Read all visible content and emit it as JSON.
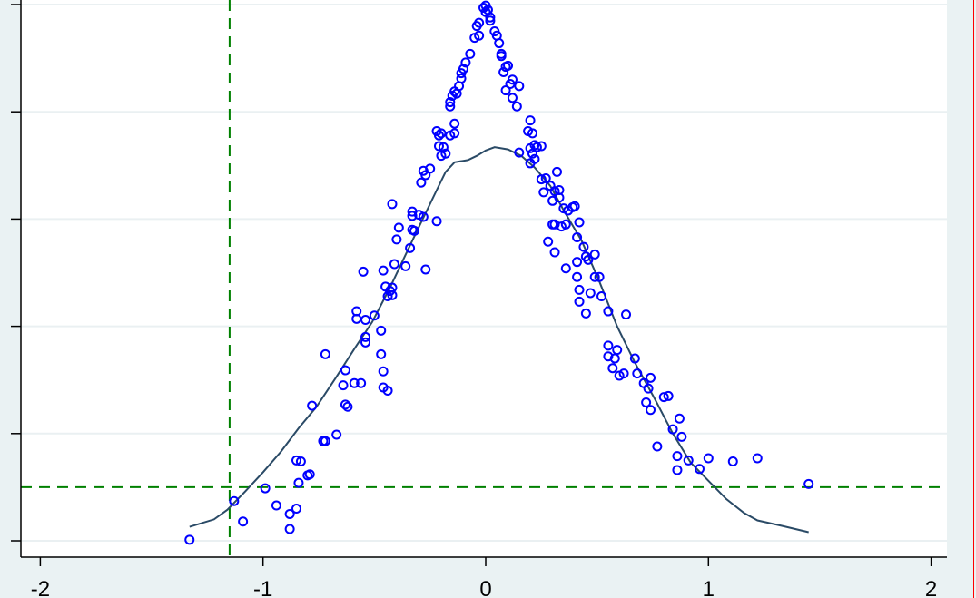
{
  "chart_data": {
    "type": "scatter",
    "title": "",
    "xlabel": "",
    "ylabel": "",
    "xlim": [
      -2.01,
      2.07
    ],
    "ylim": [
      -0.15,
      5.05
    ],
    "x_ticks": [
      -2,
      -1,
      0,
      1,
      2
    ],
    "x_tick_labels": [
      "-2",
      "-1",
      "0",
      "1",
      "2"
    ],
    "y_ticks": [
      0,
      1,
      2,
      3,
      4,
      5
    ],
    "y_tick_labels_visible": false,
    "grid": "horizontal",
    "colors": {
      "points": "#0000ff",
      "curve": "#2a4a66",
      "reference_lines": "#008000",
      "plot_bg": "#ffffff",
      "outer_bg": "#eaf2f3"
    },
    "reference_lines": {
      "horizontal_y": 0.5,
      "vertical_x": -1.15,
      "style": "dashed"
    },
    "points": [
      [
        -1.33,
        0.01
      ],
      [
        -1.13,
        0.37
      ],
      [
        -1.09,
        0.18
      ],
      [
        -0.99,
        0.49
      ],
      [
        -0.94,
        0.33
      ],
      [
        -0.88,
        0.25
      ],
      [
        -0.88,
        0.11
      ],
      [
        -0.85,
        0.3
      ],
      [
        -0.84,
        0.54
      ],
      [
        -0.83,
        0.74
      ],
      [
        -0.85,
        0.75
      ],
      [
        -0.8,
        0.61
      ],
      [
        -0.79,
        0.62
      ],
      [
        -0.78,
        1.26
      ],
      [
        -0.73,
        0.93
      ],
      [
        -0.72,
        0.93
      ],
      [
        -0.67,
        0.99
      ],
      [
        -0.72,
        1.74
      ],
      [
        -0.63,
        1.59
      ],
      [
        -0.64,
        1.45
      ],
      [
        -0.62,
        1.25
      ],
      [
        -0.63,
        1.27
      ],
      [
        -0.59,
        1.47
      ],
      [
        -0.56,
        1.47
      ],
      [
        -0.58,
        2.07
      ],
      [
        -0.58,
        2.14
      ],
      [
        -0.55,
        2.51
      ],
      [
        -0.54,
        1.9
      ],
      [
        -0.54,
        1.85
      ],
      [
        -0.54,
        2.06
      ],
      [
        -0.5,
        2.1
      ],
      [
        -0.47,
        1.74
      ],
      [
        -0.47,
        1.96
      ],
      [
        -0.46,
        1.58
      ],
      [
        -0.46,
        1.43
      ],
      [
        -0.44,
        1.4
      ],
      [
        -0.46,
        2.52
      ],
      [
        -0.45,
        2.37
      ],
      [
        -0.44,
        2.28
      ],
      [
        -0.43,
        2.33
      ],
      [
        -0.42,
        2.36
      ],
      [
        -0.42,
        2.29
      ],
      [
        -0.41,
        2.58
      ],
      [
        -0.42,
        3.14
      ],
      [
        -0.4,
        2.81
      ],
      [
        -0.39,
        2.92
      ],
      [
        -0.36,
        2.56
      ],
      [
        -0.34,
        2.73
      ],
      [
        -0.33,
        2.9
      ],
      [
        -0.32,
        2.89
      ],
      [
        -0.33,
        3.03
      ],
      [
        -0.33,
        3.07
      ],
      [
        -0.3,
        3.04
      ],
      [
        -0.28,
        3.02
      ],
      [
        -0.27,
        2.53
      ],
      [
        -0.22,
        2.98
      ],
      [
        -0.29,
        3.34
      ],
      [
        -0.28,
        3.45
      ],
      [
        -0.25,
        3.47
      ],
      [
        -0.27,
        3.41
      ],
      [
        -0.22,
        3.82
      ],
      [
        -0.21,
        3.78
      ],
      [
        -0.2,
        3.8
      ],
      [
        -0.19,
        3.67
      ],
      [
        -0.21,
        3.68
      ],
      [
        -0.2,
        3.59
      ],
      [
        -0.18,
        3.61
      ],
      [
        -0.16,
        3.78
      ],
      [
        -0.14,
        3.89
      ],
      [
        -0.14,
        3.8
      ],
      [
        -0.16,
        4.05
      ],
      [
        -0.16,
        4.09
      ],
      [
        -0.15,
        4.15
      ],
      [
        -0.14,
        4.19
      ],
      [
        -0.13,
        4.17
      ],
      [
        -0.12,
        4.24
      ],
      [
        -0.11,
        4.31
      ],
      [
        -0.11,
        4.36
      ],
      [
        -0.1,
        4.4
      ],
      [
        -0.09,
        4.46
      ],
      [
        -0.07,
        4.54
      ],
      [
        -0.05,
        4.69
      ],
      [
        -0.03,
        4.71
      ],
      [
        -0.04,
        4.8
      ],
      [
        -0.03,
        4.83
      ],
      [
        -0.01,
        4.97
      ],
      [
        0.0,
        4.99
      ],
      [
        0.0,
        4.93
      ],
      [
        0.01,
        4.95
      ],
      [
        0.02,
        4.88
      ],
      [
        0.02,
        4.85
      ],
      [
        0.04,
        4.75
      ],
      [
        0.05,
        4.71
      ],
      [
        0.06,
        4.64
      ],
      [
        0.07,
        4.54
      ],
      [
        0.07,
        4.52
      ],
      [
        0.09,
        4.42
      ],
      [
        0.1,
        4.43
      ],
      [
        0.08,
        4.37
      ],
      [
        0.09,
        4.2
      ],
      [
        0.11,
        4.26
      ],
      [
        0.12,
        4.3
      ],
      [
        0.15,
        4.24
      ],
      [
        0.12,
        4.13
      ],
      [
        0.14,
        4.05
      ],
      [
        0.2,
        3.92
      ],
      [
        0.19,
        3.82
      ],
      [
        0.21,
        3.8
      ],
      [
        0.22,
        3.69
      ],
      [
        0.2,
        3.66
      ],
      [
        0.23,
        3.67
      ],
      [
        0.25,
        3.68
      ],
      [
        0.15,
        3.62
      ],
      [
        0.2,
        3.52
      ],
      [
        0.22,
        3.56
      ],
      [
        0.21,
        3.61
      ],
      [
        0.32,
        3.44
      ],
      [
        0.25,
        3.37
      ],
      [
        0.27,
        3.38
      ],
      [
        0.29,
        3.31
      ],
      [
        0.26,
        3.25
      ],
      [
        0.31,
        3.26
      ],
      [
        0.3,
        3.17
      ],
      [
        0.33,
        3.2
      ],
      [
        0.33,
        3.27
      ],
      [
        0.35,
        3.1
      ],
      [
        0.37,
        3.08
      ],
      [
        0.39,
        3.11
      ],
      [
        0.4,
        3.12
      ],
      [
        0.28,
        2.79
      ],
      [
        0.3,
        2.95
      ],
      [
        0.31,
        2.95
      ],
      [
        0.34,
        2.93
      ],
      [
        0.36,
        2.95
      ],
      [
        0.42,
        2.97
      ],
      [
        0.31,
        2.69
      ],
      [
        0.36,
        2.54
      ],
      [
        0.41,
        2.83
      ],
      [
        0.44,
        2.74
      ],
      [
        0.45,
        2.65
      ],
      [
        0.46,
        2.62
      ],
      [
        0.41,
        2.6
      ],
      [
        0.49,
        2.67
      ],
      [
        0.49,
        2.46
      ],
      [
        0.51,
        2.46
      ],
      [
        0.41,
        2.46
      ],
      [
        0.42,
        2.34
      ],
      [
        0.47,
        2.31
      ],
      [
        0.52,
        2.28
      ],
      [
        0.42,
        2.23
      ],
      [
        0.45,
        2.12
      ],
      [
        0.55,
        2.14
      ],
      [
        0.55,
        1.82
      ],
      [
        0.59,
        1.78
      ],
      [
        0.55,
        1.72
      ],
      [
        0.58,
        1.7
      ],
      [
        0.63,
        2.11
      ],
      [
        0.67,
        1.7
      ],
      [
        0.57,
        1.61
      ],
      [
        0.6,
        1.54
      ],
      [
        0.62,
        1.56
      ],
      [
        0.68,
        1.56
      ],
      [
        0.71,
        1.47
      ],
      [
        0.74,
        1.52
      ],
      [
        0.73,
        1.42
      ],
      [
        0.72,
        1.29
      ],
      [
        0.74,
        1.22
      ],
      [
        0.8,
        1.34
      ],
      [
        0.82,
        1.35
      ],
      [
        0.87,
        1.14
      ],
      [
        0.84,
        1.04
      ],
      [
        0.88,
        0.97
      ],
      [
        0.77,
        0.88
      ],
      [
        0.86,
        0.79
      ],
      [
        0.91,
        0.75
      ],
      [
        0.86,
        0.66
      ],
      [
        0.96,
        0.67
      ],
      [
        1.0,
        0.77
      ],
      [
        1.11,
        0.74
      ],
      [
        1.22,
        0.77
      ],
      [
        1.45,
        0.53
      ]
    ],
    "curve": [
      [
        -1.33,
        0.13
      ],
      [
        -1.22,
        0.2
      ],
      [
        -1.16,
        0.29
      ],
      [
        -1.08,
        0.46
      ],
      [
        -1.0,
        0.64
      ],
      [
        -0.92,
        0.83
      ],
      [
        -0.84,
        1.05
      ],
      [
        -0.76,
        1.25
      ],
      [
        -0.67,
        1.53
      ],
      [
        -0.59,
        1.79
      ],
      [
        -0.51,
        2.04
      ],
      [
        -0.43,
        2.36
      ],
      [
        -0.35,
        2.71
      ],
      [
        -0.29,
        2.97
      ],
      [
        -0.22,
        3.27
      ],
      [
        -0.18,
        3.44
      ],
      [
        -0.14,
        3.53
      ],
      [
        -0.08,
        3.55
      ],
      [
        -0.04,
        3.59
      ],
      [
        0.0,
        3.64
      ],
      [
        0.04,
        3.67
      ],
      [
        0.1,
        3.65
      ],
      [
        0.16,
        3.59
      ],
      [
        0.22,
        3.48
      ],
      [
        0.29,
        3.31
      ],
      [
        0.35,
        3.08
      ],
      [
        0.43,
        2.8
      ],
      [
        0.51,
        2.42
      ],
      [
        0.59,
        2.0
      ],
      [
        0.67,
        1.66
      ],
      [
        0.76,
        1.32
      ],
      [
        0.84,
        1.0
      ],
      [
        0.92,
        0.73
      ],
      [
        1.0,
        0.56
      ],
      [
        1.08,
        0.39
      ],
      [
        1.16,
        0.26
      ],
      [
        1.22,
        0.19
      ],
      [
        1.33,
        0.14
      ],
      [
        1.45,
        0.08
      ]
    ]
  }
}
